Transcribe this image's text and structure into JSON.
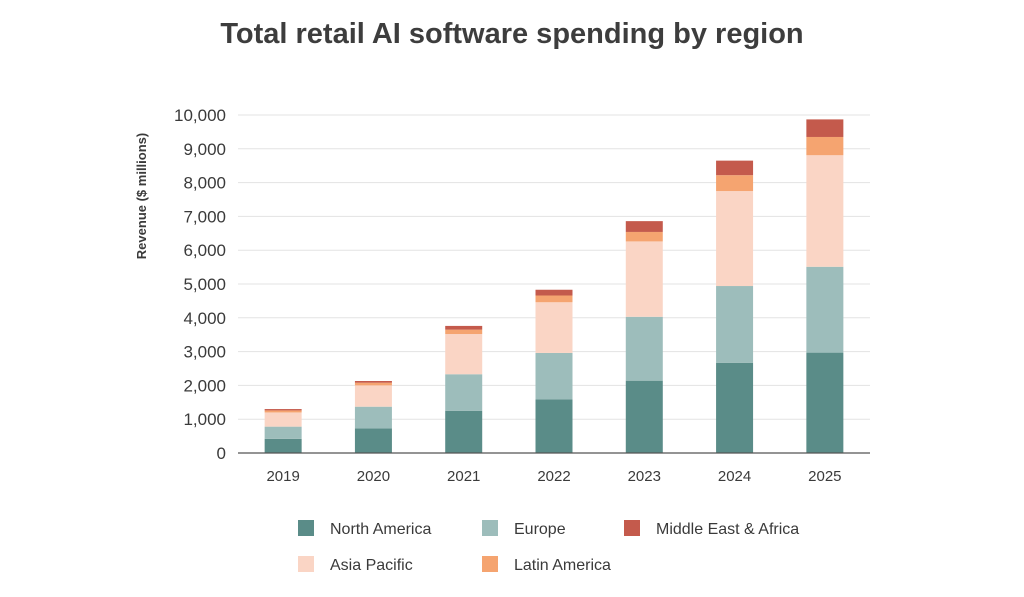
{
  "chart_data": {
    "type": "bar",
    "stacked": true,
    "title": "Total retail AI software spending by region",
    "ylabel": "Revenue ($ millions)",
    "xlabel": "",
    "ylim": [
      0,
      10000
    ],
    "yticks": [
      0,
      1000,
      2000,
      3000,
      4000,
      5000,
      6000,
      7000,
      8000,
      9000,
      10000
    ],
    "ytick_labels": [
      "0",
      "1,000",
      "2,000",
      "3,000",
      "4,000",
      "5,000",
      "6,000",
      "7,000",
      "8,000",
      "9,000",
      "10,000"
    ],
    "grid": true,
    "legend_position": "bottom",
    "categories": [
      "2019",
      "2020",
      "2021",
      "2022",
      "2023",
      "2024",
      "2025"
    ],
    "series": [
      {
        "name": "North America",
        "color": "#5a8c88",
        "values": [
          420,
          730,
          1250,
          1590,
          2140,
          2670,
          2970
        ]
      },
      {
        "name": "Europe",
        "color": "#9dbdbb",
        "values": [
          360,
          640,
          1080,
          1370,
          1890,
          2270,
          2540
        ]
      },
      {
        "name": "Asia Pacific",
        "color": "#fad5c5",
        "values": [
          420,
          630,
          1190,
          1500,
          2230,
          2810,
          3300
        ]
      },
      {
        "name": "Latin America",
        "color": "#f5a470",
        "values": [
          60,
          80,
          130,
          200,
          280,
          470,
          540
        ]
      },
      {
        "name": "Middle East & Africa",
        "color": "#c45a4c",
        "values": [
          40,
          50,
          110,
          170,
          320,
          430,
          520
        ]
      }
    ]
  }
}
